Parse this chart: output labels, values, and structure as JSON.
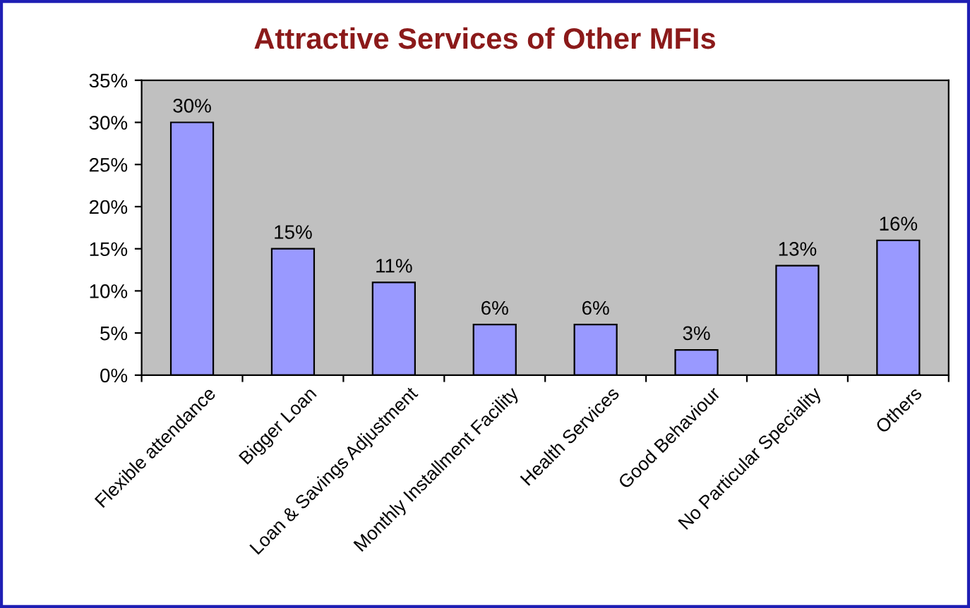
{
  "chart_data": {
    "type": "bar",
    "title": "Attractive Services of Other MFIs",
    "categories": [
      "Flexible attendance",
      "Bigger Loan",
      "Loan & Savings Adjustment",
      "Monthly Installment Facility",
      "Health Services",
      "Good Behaviour",
      "No Particular Speciality",
      "Others"
    ],
    "values": [
      30,
      15,
      11,
      6,
      6,
      3,
      13,
      16
    ],
    "value_labels": [
      "30%",
      "15%",
      "11%",
      "6%",
      "6%",
      "3%",
      "13%",
      "16%"
    ],
    "color": "#9999ff",
    "ylim": [
      0,
      35
    ],
    "yticks": [
      {
        "value": 0,
        "label": "0%"
      },
      {
        "value": 5,
        "label": "5%"
      },
      {
        "value": 10,
        "label": "10%"
      },
      {
        "value": 15,
        "label": "15%"
      },
      {
        "value": 20,
        "label": "20%"
      },
      {
        "value": 25,
        "label": "25%"
      },
      {
        "value": 30,
        "label": "30%"
      },
      {
        "value": 35,
        "label": "35%"
      }
    ],
    "grid": false,
    "legend": false
  }
}
